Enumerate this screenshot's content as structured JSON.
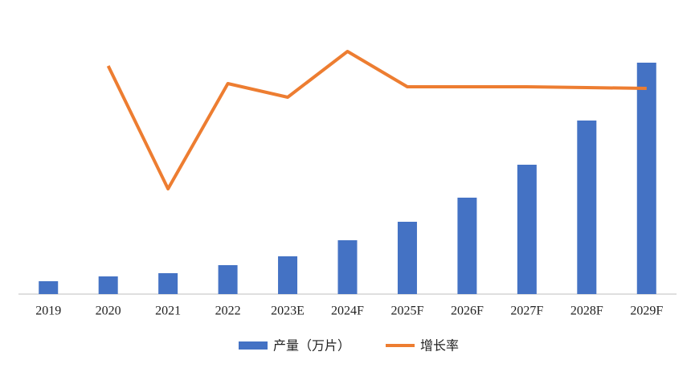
{
  "chart_data": {
    "type": "bar-line",
    "categories": [
      "2019",
      "2020",
      "2021",
      "2022",
      "2023E",
      "2024F",
      "2025F",
      "2026F",
      "2027F",
      "2028F",
      "2029F"
    ],
    "series": [
      {
        "name": "产量（万片）",
        "type": "bar",
        "color": "#4472c4",
        "values": [
          16,
          22,
          26,
          36,
          47,
          67,
          90,
          120,
          161,
          216,
          288
        ]
      },
      {
        "name": "增长率",
        "type": "line",
        "axis": "y2",
        "color": "#ed7d31",
        "values": [
          null,
          284,
          131,
          262,
          245,
          302,
          258,
          258,
          258,
          257,
          256
        ]
      }
    ],
    "ylim": [
      0,
      320
    ],
    "y2lim": [
      0,
      320
    ]
  }
}
